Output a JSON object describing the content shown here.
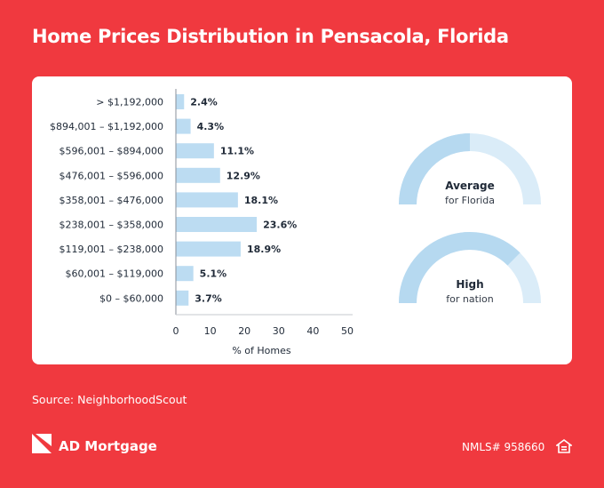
{
  "title": "Home Prices Distribution in Pensacola, Florida",
  "chart_data": {
    "type": "bar",
    "orientation": "horizontal",
    "categories": [
      "> $1,192,000",
      "$894,001 – $1,192,000",
      "$596,001 – $894,000",
      "$476,001 – $596,000",
      "$358,001 – $476,000",
      "$238,001 – $358,000",
      "$119,001 – $238,000",
      "$60,001 – $119,000",
      "$0 – $60,000"
    ],
    "values": [
      2.4,
      4.3,
      11.1,
      12.9,
      18.1,
      23.6,
      18.9,
      5.1,
      3.7
    ],
    "value_labels": [
      "2.4%",
      "4.3%",
      "11.1%",
      "12.9%",
      "18.1%",
      "23.6%",
      "18.9%",
      "5.1%",
      "3.7%"
    ],
    "xticks": [
      0,
      10,
      20,
      30,
      40,
      50
    ],
    "xlim": [
      0,
      52
    ],
    "xlabel": "% of Homes",
    "bar_color": "#bcdcf2"
  },
  "gauges": [
    {
      "label": "Average",
      "sub": "for Florida",
      "level": 0.5
    },
    {
      "label": "High",
      "sub": "for nation",
      "level": 0.75
    }
  ],
  "gauge_colors": {
    "filled": "#b6d9f0",
    "empty": "#daecf8"
  },
  "source": "Source: NeighborhoodScout",
  "brand": "AD Mortgage",
  "nmls": "NMLS# 958660",
  "colors": {
    "background": "#f0393f",
    "card": "#ffffff",
    "text": "#1f2937"
  },
  "icons": {
    "logo": "ad-mortgage-logo-icon",
    "housing": "equal-housing-opportunity-icon"
  }
}
